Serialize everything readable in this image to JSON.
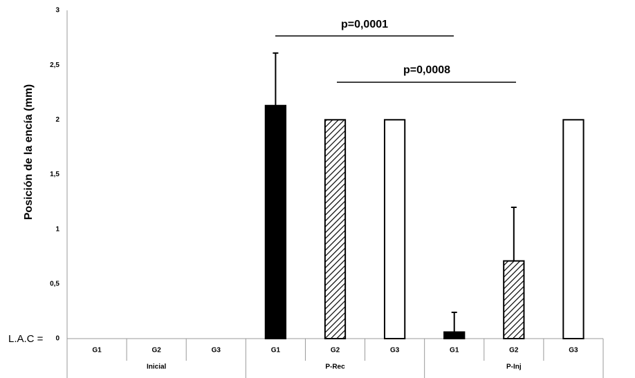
{
  "chart_data": {
    "type": "bar",
    "y_label": "Posición de la encía (mm)",
    "baseline_label": "L.A.C =",
    "ylim": [
      0,
      3
    ],
    "yticks": [
      0,
      {
        "value": 0.5,
        "label": "0,5"
      },
      1,
      {
        "value": 1.5,
        "label": "1,5"
      },
      2,
      {
        "value": 2.5,
        "label": "2,5"
      },
      3
    ],
    "patterns": [
      "solid",
      "hatch",
      "empty"
    ],
    "groups": [
      {
        "name": "Inicial",
        "categories": [
          "G1",
          "G2",
          "G3"
        ],
        "values": [
          0,
          0,
          0
        ],
        "errors": [
          null,
          null,
          null
        ]
      },
      {
        "name": "P-Rec",
        "categories": [
          "G1",
          "G2",
          "G3"
        ],
        "values": [
          2.13,
          2.0,
          2.0
        ],
        "errors": [
          0.48,
          null,
          null
        ]
      },
      {
        "name": "P-Inj",
        "categories": [
          "G1",
          "G2",
          "G3"
        ],
        "values": [
          0.06,
          0.71,
          2.0
        ],
        "errors": [
          0.18,
          0.49,
          null
        ]
      }
    ],
    "annotations": [
      "p=0,0001",
      "p=0,0008"
    ]
  }
}
